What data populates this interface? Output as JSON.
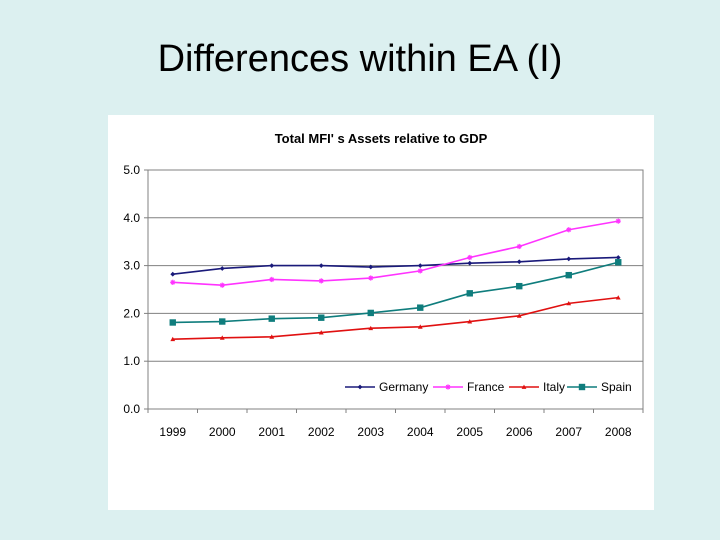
{
  "slide": {
    "title": "Differences within EA (I)"
  },
  "chart_data": {
    "type": "line",
    "title": "Total MFI' s Assets relative to GDP",
    "xlabel": "",
    "ylabel": "",
    "categories": [
      "1999",
      "2000",
      "2001",
      "2002",
      "2003",
      "2004",
      "2005",
      "2006",
      "2007",
      "2008"
    ],
    "ylim": [
      0,
      5
    ],
    "yticks": [
      "0.0",
      "1.0",
      "2.0",
      "3.0",
      "4.0",
      "5.0"
    ],
    "grid": "horizontal",
    "legend": "bottom-right inside",
    "series": [
      {
        "name": "Germany",
        "color": "#1a1a7a",
        "marker": "diamond",
        "values": [
          2.82,
          2.94,
          3.0,
          3.0,
          2.97,
          3.0,
          3.05,
          3.08,
          3.14,
          3.17
        ]
      },
      {
        "name": "France",
        "color": "#ff33ff",
        "marker": "star",
        "values": [
          2.65,
          2.59,
          2.71,
          2.68,
          2.74,
          2.89,
          3.17,
          3.4,
          3.75,
          3.93
        ]
      },
      {
        "name": "Italy",
        "color": "#e01010",
        "marker": "triangle",
        "values": [
          1.46,
          1.49,
          1.51,
          1.6,
          1.69,
          1.72,
          1.83,
          1.95,
          2.21,
          2.33
        ]
      },
      {
        "name": "Spain",
        "color": "#0f7d7d",
        "marker": "square",
        "values": [
          1.81,
          1.83,
          1.89,
          1.91,
          2.01,
          2.12,
          2.42,
          2.57,
          2.8,
          3.07
        ]
      }
    ]
  }
}
